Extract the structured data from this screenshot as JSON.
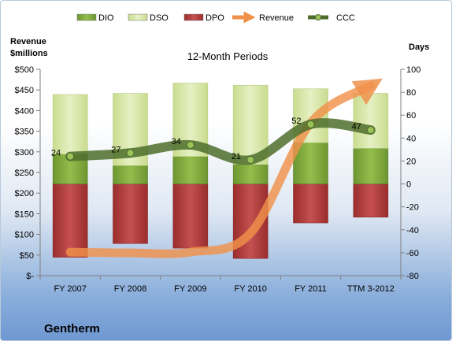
{
  "chart_data": {
    "type": "bar",
    "title": "12-Month Periods",
    "company": "Gentherm",
    "left_axis": {
      "label_line1": "Revenue",
      "label_line2": "$millions",
      "range": [
        0,
        500
      ],
      "ticks": [
        0,
        50,
        100,
        150,
        200,
        250,
        300,
        350,
        400,
        450,
        500
      ],
      "tick_labels": [
        "$-",
        "$50",
        "$100",
        "$150",
        "$200",
        "$250",
        "$300",
        "$350",
        "$400",
        "$450",
        "$500"
      ]
    },
    "right_axis": {
      "label": "Days",
      "range": [
        -80,
        100
      ],
      "ticks": [
        -80,
        -60,
        -40,
        -20,
        0,
        20,
        40,
        60,
        80,
        100
      ],
      "tick_labels": [
        "-80",
        "-60",
        "-40",
        "-20",
        "0",
        "20",
        "40",
        "60",
        "80",
        "100"
      ]
    },
    "categories": [
      "FY 2007",
      "FY 2008",
      "FY 2009",
      "FY 2010",
      "FY 2011",
      "TTM 3-2012"
    ],
    "legend": [
      {
        "name": "DIO",
        "color": "#7fa83c",
        "kind": "bar"
      },
      {
        "name": "DSO",
        "color": "#d7e6a8",
        "kind": "bar"
      },
      {
        "name": "DPO",
        "color": "#b23a3a",
        "kind": "bar"
      },
      {
        "name": "Revenue",
        "color": "#f0914a",
        "kind": "arrow"
      },
      {
        "name": "CCC",
        "color": "#5b7f33",
        "kind": "line"
      }
    ],
    "series": [
      {
        "name": "DIO",
        "axis": "days",
        "values": [
          26,
          16,
          24,
          17,
          36,
          31
        ]
      },
      {
        "name": "DSO",
        "axis": "days",
        "values": [
          52,
          63,
          64,
          69,
          47,
          48
        ]
      },
      {
        "name": "DPO",
        "axis": "days",
        "values": [
          -64,
          -52,
          -56,
          -65,
          -34,
          -29
        ]
      },
      {
        "name": "Revenue",
        "axis": "revenue",
        "values": [
          57,
          55,
          57,
          103,
          370,
          460
        ]
      },
      {
        "name": "CCC",
        "axis": "days",
        "values": [
          24,
          27,
          34,
          21,
          52,
          47
        ]
      }
    ],
    "ccc_labels": [
      "24",
      "27",
      "34",
      "21",
      "52",
      "47"
    ],
    "grid": false,
    "legend_position": "top"
  },
  "colors": {
    "dio": "#7fa83c",
    "dso": "#d7e6a8",
    "dpo": "#b23a3a",
    "revenue": "#f0914a",
    "ccc": "#5b7f33"
  }
}
